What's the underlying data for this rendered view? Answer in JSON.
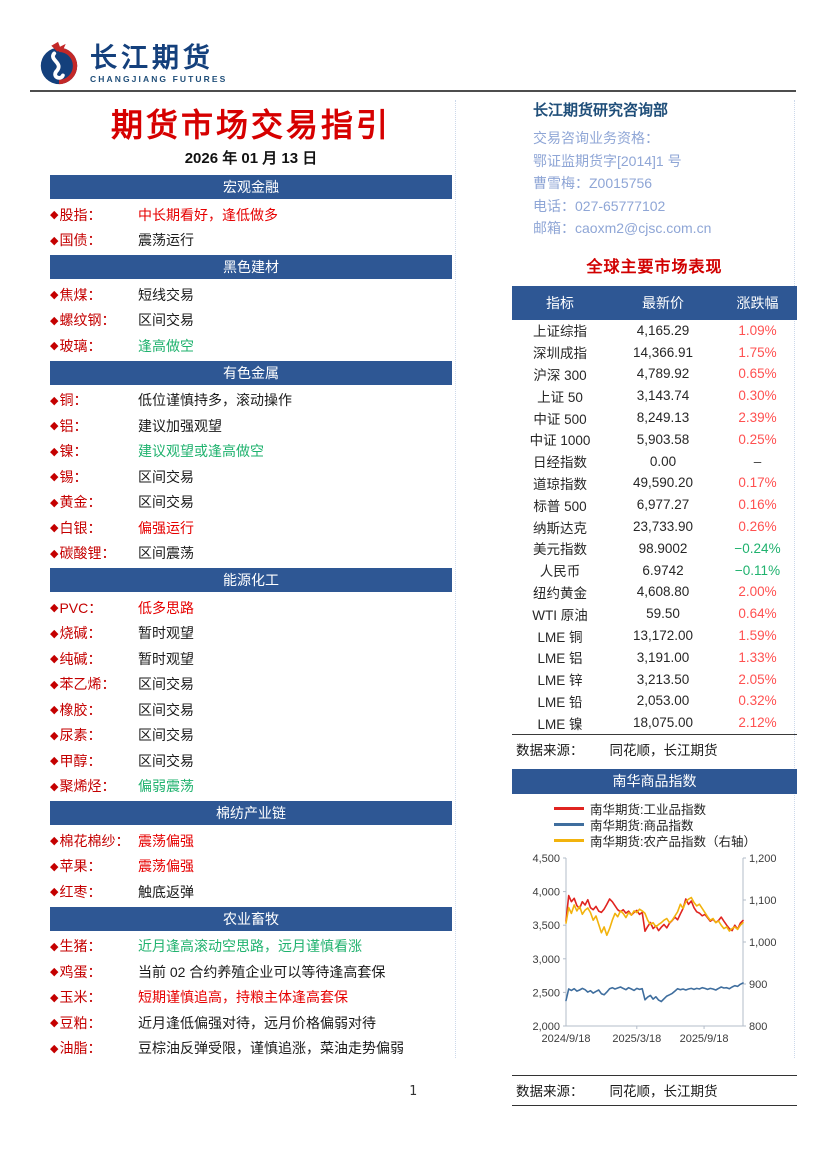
{
  "page": {
    "number": "1"
  },
  "logo": {
    "name_cn": "长江期货",
    "name_en": "CHANGJIANG FUTURES"
  },
  "header": {
    "title": "期货市场交易指引",
    "date": "2026 年 01 月 13 日"
  },
  "icons": {
    "bullet": "◆"
  },
  "colors": {
    "brand_blue": "#2e5794",
    "deep_blue": "#1f4e79",
    "title_red": "#d60000",
    "label_red": "#c40000",
    "advice_red": "#e60000",
    "advice_green": "#1fb26e",
    "up_red": "#ff5050",
    "down_green": "#1fb26e",
    "info_blue": "#8fa6d6"
  },
  "research": {
    "title": "长江期货研究咨询部",
    "lines": [
      "交易咨询业务资格：",
      "鄂证监期货字[2014]1 号",
      "曹雪梅：Z0015756",
      "电话：027-65777102",
      "邮箱：caoxm2@cjsc.com.cn"
    ]
  },
  "left_sections": [
    {
      "title": "宏观金融",
      "rows": [
        {
          "label": "股指：",
          "value": "中长期看好，逢低做多",
          "color": "red"
        },
        {
          "label": "国债：",
          "value": "震荡运行",
          "color": "black"
        }
      ]
    },
    {
      "title": "黑色建材",
      "rows": [
        {
          "label": "焦煤：",
          "value": "短线交易",
          "color": "black"
        },
        {
          "label": "螺纹钢：",
          "value": "区间交易",
          "color": "black"
        },
        {
          "label": "玻璃：",
          "value": "逢高做空",
          "color": "green"
        }
      ]
    },
    {
      "title": "有色金属",
      "rows": [
        {
          "label": "铜：",
          "value": "低位谨慎持多，滚动操作",
          "color": "black"
        },
        {
          "label": "铝：",
          "value": "建议加强观望",
          "color": "black"
        },
        {
          "label": "镍：",
          "value": "建议观望或逢高做空",
          "color": "green"
        },
        {
          "label": "锡：",
          "value": "区间交易",
          "color": "black"
        },
        {
          "label": "黄金：",
          "value": "区间交易",
          "color": "black"
        },
        {
          "label": "白银：",
          "value": "偏强运行",
          "color": "red"
        },
        {
          "label": "碳酸锂：",
          "value": "区间震荡",
          "color": "black"
        }
      ]
    },
    {
      "title": "能源化工",
      "rows": [
        {
          "label": "PVC：",
          "value": "低多思路",
          "color": "red"
        },
        {
          "label": "烧碱：",
          "value": "暂时观望",
          "color": "black"
        },
        {
          "label": "纯碱：",
          "value": "暂时观望",
          "color": "black"
        },
        {
          "label": "苯乙烯：",
          "value": "区间交易",
          "color": "black"
        },
        {
          "label": "橡胶：",
          "value": "区间交易",
          "color": "black"
        },
        {
          "label": "尿素：",
          "value": "区间交易",
          "color": "black"
        },
        {
          "label": "甲醇：",
          "value": "区间交易",
          "color": "black"
        },
        {
          "label": "聚烯烃：",
          "value": "偏弱震荡",
          "color": "green"
        }
      ]
    },
    {
      "title": "棉纺产业链",
      "rows": [
        {
          "label": "棉花棉纱：",
          "value": "震荡偏强",
          "color": "red"
        },
        {
          "label": "苹果：",
          "value": "震荡偏强",
          "color": "red"
        },
        {
          "label": "红枣：",
          "value": "触底返弹",
          "color": "black"
        }
      ]
    },
    {
      "title": "农业畜牧",
      "rows": [
        {
          "label": "生猪：",
          "value": "近月逢高滚动空思路，远月谨慎看涨",
          "color": "green"
        },
        {
          "label": "鸡蛋：",
          "value": "当前 02 合约养殖企业可以等待逢高套保",
          "color": "black"
        },
        {
          "label": "玉米：",
          "value": "短期谨慎追高，持粮主体逢高套保",
          "color": "red"
        },
        {
          "label": "豆粕：",
          "value": "近月逢低偏强对待，远月价格偏弱对待",
          "color": "black"
        },
        {
          "label": "油脂：",
          "value": "豆棕油反弹受限，谨慎追涨，菜油走势偏弱",
          "color": "black"
        }
      ]
    }
  ],
  "market_table": {
    "section_title": "全球主要市场表现",
    "headers": [
      "指标",
      "最新价",
      "涨跌幅"
    ],
    "rows": [
      {
        "name": "上证综指",
        "price": "4,165.29",
        "change": "1.09%",
        "dir": "up"
      },
      {
        "name": "深圳成指",
        "price": "14,366.91",
        "change": "1.75%",
        "dir": "up"
      },
      {
        "name": "沪深 300",
        "price": "4,789.92",
        "change": "0.65%",
        "dir": "up"
      },
      {
        "name": "上证 50",
        "price": "3,143.74",
        "change": "0.30%",
        "dir": "up"
      },
      {
        "name": "中证 500",
        "price": "8,249.13",
        "change": "2.39%",
        "dir": "up"
      },
      {
        "name": "中证 1000",
        "price": "5,903.58",
        "change": "0.25%",
        "dir": "up"
      },
      {
        "name": "日经指数",
        "price": "0.00",
        "change": "–",
        "dir": "flat"
      },
      {
        "name": "道琼指数",
        "price": "49,590.20",
        "change": "0.17%",
        "dir": "up"
      },
      {
        "name": "标普 500",
        "price": "6,977.27",
        "change": "0.16%",
        "dir": "up"
      },
      {
        "name": "纳斯达克",
        "price": "23,733.90",
        "change": "0.26%",
        "dir": "up"
      },
      {
        "name": "美元指数",
        "price": "98.9002",
        "change": "−0.24%",
        "dir": "down"
      },
      {
        "name": "人民币",
        "price": "6.9742",
        "change": "−0.11%",
        "dir": "down"
      },
      {
        "name": "纽约黄金",
        "price": "4,608.80",
        "change": "2.00%",
        "dir": "up"
      },
      {
        "name": "WTI 原油",
        "price": "59.50",
        "change": "0.64%",
        "dir": "up"
      },
      {
        "name": "LME 铜",
        "price": "13,172.00",
        "change": "1.59%",
        "dir": "up"
      },
      {
        "name": "LME 铝",
        "price": "3,191.00",
        "change": "1.33%",
        "dir": "up"
      },
      {
        "name": "LME 锌",
        "price": "3,213.50",
        "change": "2.05%",
        "dir": "up"
      },
      {
        "name": "LME 铅",
        "price": "2,053.00",
        "change": "0.32%",
        "dir": "up"
      },
      {
        "name": "LME 镍",
        "price": "18,075.00",
        "change": "2.12%",
        "dir": "up"
      }
    ],
    "source_label": "数据来源：",
    "source_value": "同花顺，长江期货"
  },
  "chart": {
    "title": "南华商品指数",
    "source_label": "数据来源：",
    "source_value": "同花顺，长江期货"
  },
  "chart_data": {
    "type": "line",
    "title": "南华商品指数",
    "legend_position": "top-left",
    "grid": false,
    "x_ticks": [
      "2024/9/18",
      "2025/3/18",
      "2025/9/18"
    ],
    "x_tick_positions": [
      0,
      0.4,
      0.78
    ],
    "left_axis": {
      "min": 2000,
      "max": 4500,
      "ticks": [
        "4,500",
        "4,000",
        "3,500",
        "3,000",
        "2,500",
        "2,000"
      ]
    },
    "right_axis": {
      "min": 800,
      "max": 1200,
      "ticks": [
        "1,200",
        "1,100",
        "1,000",
        "900",
        "800"
      ]
    },
    "series": [
      {
        "name": "南华期货:工业品指数",
        "axis": "left",
        "color": "#e02420",
        "values": [
          3560,
          3940,
          3850,
          3900,
          3790,
          3750,
          3850,
          3800,
          3880,
          3760,
          3730,
          3780,
          3710,
          3690,
          3740,
          3810,
          3890,
          3850,
          3790,
          3730,
          3700,
          3730,
          3680,
          3710,
          3650,
          3690,
          3720,
          3660,
          3690,
          3410,
          3480,
          3540,
          3450,
          3490,
          3420,
          3470,
          3510,
          3460,
          3530,
          3570,
          3620,
          3580,
          3670,
          3750,
          3890,
          3810,
          3860,
          3760,
          3700,
          3680,
          3640,
          3660,
          3610,
          3560,
          3590,
          3540,
          3570,
          3620,
          3560,
          3500,
          3450,
          3420,
          3500,
          3440,
          3530,
          3570
        ]
      },
      {
        "name": "南华期货:商品指数",
        "axis": "left",
        "color": "#3f6e9e",
        "values": [
          2380,
          2550,
          2530,
          2555,
          2520,
          2535,
          2560,
          2540,
          2505,
          2525,
          2490,
          2515,
          2535,
          2480,
          2465,
          2505,
          2555,
          2570,
          2550,
          2565,
          2580,
          2560,
          2540,
          2570,
          2550,
          2530,
          2560,
          2545,
          2555,
          2390,
          2430,
          2455,
          2400,
          2435,
          2385,
          2365,
          2405,
          2445,
          2465,
          2485,
          2520,
          2555,
          2540,
          2550,
          2535,
          2550,
          2560,
          2545,
          2560,
          2550,
          2570,
          2560,
          2545,
          2560,
          2550,
          2535,
          2560,
          2580,
          2565,
          2570,
          2555,
          2580,
          2600,
          2590,
          2620,
          2640
        ]
      },
      {
        "name": "南华期货:农产品指数（右轴）",
        "axis": "right",
        "color": "#f2b30d",
        "values": [
          1045,
          1082,
          1068,
          1088,
          1074,
          1085,
          1066,
          1076,
          1081,
          1070,
          1052,
          1062,
          1042,
          1022,
          1036,
          1016,
          1032,
          1052,
          1068,
          1060,
          1074,
          1068,
          1058,
          1070,
          1064,
          1074,
          1070,
          1078,
          1074,
          1068,
          1052,
          1042,
          1046,
          1036,
          1042,
          1046,
          1052,
          1056,
          1046,
          1052,
          1062,
          1072,
          1090,
          1080,
          1096,
          1102,
          1106,
          1094,
          1086,
          1090,
          1080,
          1070,
          1060,
          1052,
          1056,
          1046,
          1050,
          1040,
          1032,
          1036,
          1026,
          1032,
          1036,
          1030,
          1040,
          1046
        ]
      }
    ]
  }
}
